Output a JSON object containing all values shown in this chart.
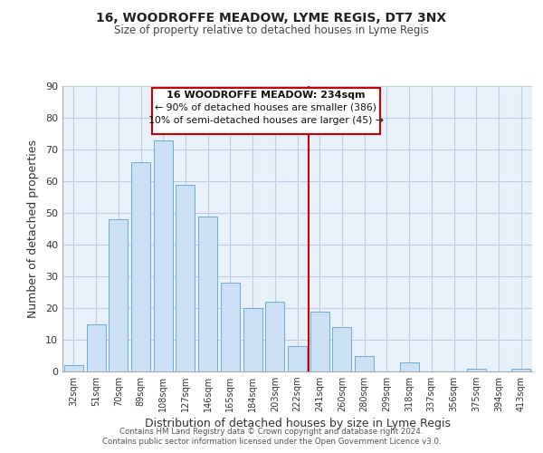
{
  "title1": "16, WOODROFFE MEADOW, LYME REGIS, DT7 3NX",
  "title2": "Size of property relative to detached houses in Lyme Regis",
  "xlabel": "Distribution of detached houses by size in Lyme Regis",
  "ylabel": "Number of detached properties",
  "categories": [
    "32sqm",
    "51sqm",
    "70sqm",
    "89sqm",
    "108sqm",
    "127sqm",
    "146sqm",
    "165sqm",
    "184sqm",
    "203sqm",
    "222sqm",
    "241sqm",
    "260sqm",
    "280sqm",
    "299sqm",
    "318sqm",
    "337sqm",
    "356sqm",
    "375sqm",
    "394sqm",
    "413sqm"
  ],
  "values": [
    2,
    15,
    48,
    66,
    73,
    59,
    49,
    28,
    20,
    22,
    8,
    19,
    14,
    5,
    0,
    3,
    0,
    0,
    1,
    0,
    1
  ],
  "bar_color": "#cce0f5",
  "bar_edge_color": "#6aaed6",
  "vline_x": 10.5,
  "vline_color": "#cc0000",
  "ylim": [
    0,
    90
  ],
  "yticks": [
    0,
    10,
    20,
    30,
    40,
    50,
    60,
    70,
    80,
    90
  ],
  "annotation_title": "16 WOODROFFE MEADOW: 234sqm",
  "annotation_line1": "← 90% of detached houses are smaller (386)",
  "annotation_line2": "10% of semi-detached houses are larger (45) →",
  "footnote1": "Contains HM Land Registry data © Crown copyright and database right 2024.",
  "footnote2": "Contains public sector information licensed under the Open Government Licence v3.0.",
  "plot_bg_color": "#e8f0fa",
  "background_color": "#ffffff",
  "grid_color": "#c0cce0"
}
